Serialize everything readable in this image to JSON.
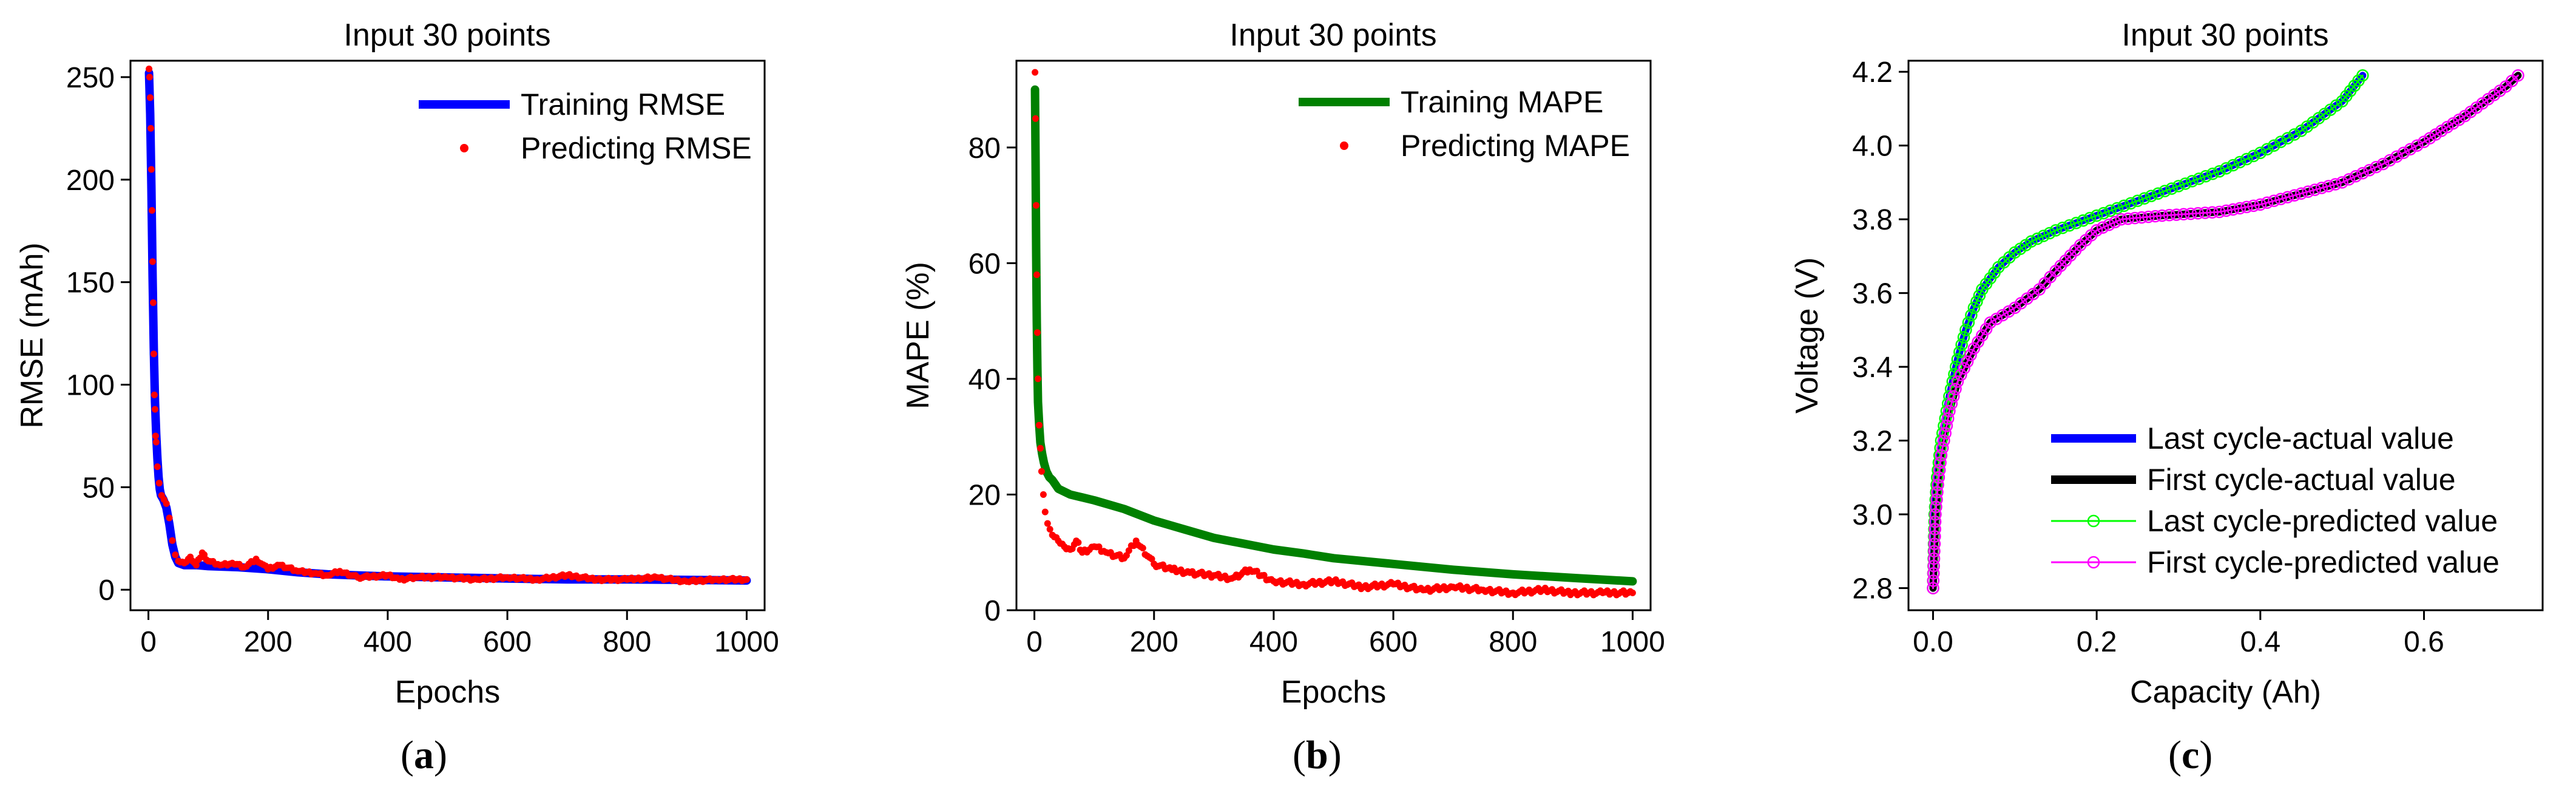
{
  "chart_data": [
    {
      "type": "line",
      "panel_label": "a",
      "title": "Input 30 points",
      "xlabel": "Epochs",
      "ylabel": "RMSE (mAh)",
      "xlim": [
        -30,
        1030
      ],
      "ylim": [
        -10,
        258
      ],
      "xticks": [
        0,
        200,
        400,
        600,
        800,
        1000
      ],
      "yticks": [
        0,
        50,
        100,
        150,
        200,
        250
      ],
      "grid": false,
      "legend_position": "top-right",
      "series": [
        {
          "name": "Training RMSE",
          "style": "line",
          "color": "#0000ff",
          "points": [
            [
              1,
              252
            ],
            [
              3,
              232
            ],
            [
              5,
              196
            ],
            [
              7,
              152
            ],
            [
              9,
              118
            ],
            [
              11,
              92
            ],
            [
              13,
              76
            ],
            [
              15,
              64
            ],
            [
              17,
              55
            ],
            [
              19,
              49
            ],
            [
              21,
              46
            ],
            [
              25,
              44
            ],
            [
              30,
              40
            ],
            [
              35,
              32
            ],
            [
              40,
              22
            ],
            [
              45,
              16
            ],
            [
              50,
              13
            ],
            [
              60,
              12
            ],
            [
              80,
              12
            ],
            [
              100,
              11.5
            ],
            [
              150,
              11
            ],
            [
              200,
              10
            ],
            [
              250,
              8.5
            ],
            [
              300,
              7.5
            ],
            [
              400,
              6.5
            ],
            [
              500,
              6
            ],
            [
              600,
              5.5
            ],
            [
              700,
              5
            ],
            [
              800,
              5
            ],
            [
              900,
              4.8
            ],
            [
              1000,
              4.5
            ]
          ]
        },
        {
          "name": "Predicting RMSE",
          "style": "scatter",
          "color": "#ff0000",
          "points": [
            [
              1,
              254
            ],
            [
              2,
              250
            ],
            [
              3,
              240
            ],
            [
              4,
              225
            ],
            [
              5,
              205
            ],
            [
              6,
              185
            ],
            [
              7,
              160
            ],
            [
              8,
              140
            ],
            [
              9,
              115
            ],
            [
              10,
              95
            ],
            [
              11,
              88
            ],
            [
              12,
              75
            ],
            [
              13,
              72
            ],
            [
              15,
              60
            ],
            [
              18,
              52
            ],
            [
              22,
              46
            ],
            [
              26,
              44
            ],
            [
              30,
              42
            ],
            [
              35,
              35
            ],
            [
              40,
              24
            ],
            [
              45,
              17
            ],
            [
              50,
              14
            ],
            [
              60,
              13
            ],
            [
              70,
              16
            ],
            [
              80,
              12
            ],
            [
              90,
              18
            ],
            [
              100,
              14
            ],
            [
              120,
              12
            ],
            [
              140,
              13
            ],
            [
              160,
              11
            ],
            [
              180,
              15
            ],
            [
              200,
              10
            ],
            [
              220,
              12
            ],
            [
              250,
              9
            ],
            [
              280,
              8
            ],
            [
              300,
              7
            ],
            [
              320,
              9
            ],
            [
              350,
              6
            ],
            [
              400,
              7
            ],
            [
              420,
              5
            ],
            [
              450,
              6
            ],
            [
              500,
              6
            ],
            [
              550,
              5
            ],
            [
              600,
              6
            ],
            [
              650,
              5
            ],
            [
              700,
              7
            ],
            [
              750,
              5
            ],
            [
              800,
              5
            ],
            [
              850,
              6
            ],
            [
              900,
              4
            ],
            [
              950,
              5
            ],
            [
              1000,
              5
            ]
          ]
        }
      ]
    },
    {
      "type": "line",
      "panel_label": "b",
      "title": "Input 30 points",
      "xlabel": "Epochs",
      "ylabel": "MAPE (%)",
      "xlim": [
        -30,
        1030
      ],
      "ylim": [
        0,
        95
      ],
      "xticks": [
        0,
        200,
        400,
        600,
        800,
        1000
      ],
      "yticks": [
        0,
        20,
        40,
        60,
        80
      ],
      "grid": false,
      "legend_position": "top-right",
      "series": [
        {
          "name": "Training MAPE",
          "style": "line",
          "color": "#008000",
          "points": [
            [
              1,
              90
            ],
            [
              2,
              78
            ],
            [
              3,
              62
            ],
            [
              4,
              50
            ],
            [
              5,
              42
            ],
            [
              6,
              36
            ],
            [
              8,
              32
            ],
            [
              10,
              29
            ],
            [
              13,
              27
            ],
            [
              16,
              25.5
            ],
            [
              20,
              24
            ],
            [
              25,
              23
            ],
            [
              30,
              22.5
            ],
            [
              40,
              21
            ],
            [
              60,
              20
            ],
            [
              80,
              19.5
            ],
            [
              100,
              19
            ],
            [
              150,
              17.5
            ],
            [
              200,
              15.5
            ],
            [
              250,
              14
            ],
            [
              300,
              12.5
            ],
            [
              350,
              11.5
            ],
            [
              400,
              10.5
            ],
            [
              450,
              9.8
            ],
            [
              500,
              9
            ],
            [
              600,
              8
            ],
            [
              700,
              7
            ],
            [
              800,
              6.2
            ],
            [
              900,
              5.6
            ],
            [
              1000,
              5
            ]
          ]
        },
        {
          "name": "Predicting MAPE",
          "style": "scatter",
          "color": "#ff0000",
          "points": [
            [
              1,
              93
            ],
            [
              2,
              85
            ],
            [
              3,
              70
            ],
            [
              4,
              58
            ],
            [
              5,
              48
            ],
            [
              6,
              40
            ],
            [
              8,
              32
            ],
            [
              10,
              28
            ],
            [
              12,
              24
            ],
            [
              15,
              20
            ],
            [
              18,
              17
            ],
            [
              22,
              15
            ],
            [
              26,
              14
            ],
            [
              30,
              13
            ],
            [
              40,
              12
            ],
            [
              50,
              11
            ],
            [
              60,
              10.5
            ],
            [
              70,
              12
            ],
            [
              80,
              10
            ],
            [
              100,
              11
            ],
            [
              120,
              10
            ],
            [
              150,
              9
            ],
            [
              170,
              12
            ],
            [
              200,
              8
            ],
            [
              230,
              7
            ],
            [
              260,
              6.5
            ],
            [
              300,
              6
            ],
            [
              330,
              5.5
            ],
            [
              360,
              7
            ],
            [
              400,
              5
            ],
            [
              450,
              4.5
            ],
            [
              500,
              5
            ],
            [
              550,
              4
            ],
            [
              600,
              4.5
            ],
            [
              650,
              3.5
            ],
            [
              700,
              4
            ],
            [
              750,
              3.5
            ],
            [
              800,
              3
            ],
            [
              850,
              3.5
            ],
            [
              900,
              3
            ],
            [
              950,
              3
            ],
            [
              1000,
              3
            ]
          ]
        }
      ]
    },
    {
      "type": "line",
      "panel_label": "c",
      "title": "Input 30 points",
      "xlabel": "Capacity (Ah)",
      "ylabel": "Voltage (V)",
      "xlim": [
        -0.03,
        0.745
      ],
      "ylim": [
        2.74,
        4.23
      ],
      "xticks": [
        0.0,
        0.2,
        0.4,
        0.6
      ],
      "yticks": [
        2.8,
        3.0,
        3.2,
        3.4,
        3.6,
        3.8,
        4.0,
        4.2
      ],
      "grid": false,
      "legend_position": "bottom-right",
      "series": [
        {
          "name": "Last cycle-actual value",
          "style": "line",
          "color": "#0000ff",
          "points": [
            [
              0,
              2.8
            ],
            [
              0.002,
              3.0
            ],
            [
              0.005,
              3.1
            ],
            [
              0.01,
              3.2
            ],
            [
              0.02,
              3.32
            ],
            [
              0.03,
              3.42
            ],
            [
              0.04,
              3.5
            ],
            [
              0.05,
              3.56
            ],
            [
              0.06,
              3.61
            ],
            [
              0.08,
              3.67
            ],
            [
              0.1,
              3.71
            ],
            [
              0.12,
              3.74
            ],
            [
              0.15,
              3.77
            ],
            [
              0.2,
              3.81
            ],
            [
              0.25,
              3.85
            ],
            [
              0.3,
              3.89
            ],
            [
              0.35,
              3.93
            ],
            [
              0.4,
              3.98
            ],
            [
              0.45,
              4.04
            ],
            [
              0.5,
              4.12
            ],
            [
              0.525,
              4.19
            ]
          ]
        },
        {
          "name": "First cycle-actual value",
          "style": "line",
          "color": "#000000",
          "points": [
            [
              0,
              2.8
            ],
            [
              0.003,
              3.0
            ],
            [
              0.006,
              3.08
            ],
            [
              0.01,
              3.16
            ],
            [
              0.02,
              3.28
            ],
            [
              0.03,
              3.36
            ],
            [
              0.05,
              3.45
            ],
            [
              0.07,
              3.52
            ],
            [
              0.1,
              3.56
            ],
            [
              0.13,
              3.61
            ],
            [
              0.15,
              3.66
            ],
            [
              0.18,
              3.73
            ],
            [
              0.2,
              3.77
            ],
            [
              0.23,
              3.8
            ],
            [
              0.28,
              3.81
            ],
            [
              0.35,
              3.82
            ],
            [
              0.4,
              3.84
            ],
            [
              0.45,
              3.87
            ],
            [
              0.5,
              3.9
            ],
            [
              0.55,
              3.95
            ],
            [
              0.6,
              4.01
            ],
            [
              0.65,
              4.08
            ],
            [
              0.7,
              4.16
            ],
            [
              0.715,
              4.19
            ]
          ]
        },
        {
          "name": "Last cycle-predicted value",
          "style": "line-marker",
          "color": "#00ff00",
          "points": [
            [
              0,
              2.8
            ],
            [
              0.002,
              3.0
            ],
            [
              0.005,
              3.1
            ],
            [
              0.01,
              3.2
            ],
            [
              0.02,
              3.32
            ],
            [
              0.03,
              3.42
            ],
            [
              0.04,
              3.5
            ],
            [
              0.05,
              3.56
            ],
            [
              0.06,
              3.61
            ],
            [
              0.08,
              3.67
            ],
            [
              0.1,
              3.71
            ],
            [
              0.12,
              3.74
            ],
            [
              0.15,
              3.77
            ],
            [
              0.2,
              3.81
            ],
            [
              0.25,
              3.85
            ],
            [
              0.3,
              3.89
            ],
            [
              0.35,
              3.93
            ],
            [
              0.4,
              3.98
            ],
            [
              0.45,
              4.04
            ],
            [
              0.5,
              4.12
            ],
            [
              0.525,
              4.19
            ]
          ]
        },
        {
          "name": "First cycle-predicted value",
          "style": "line-marker",
          "color": "#ff00ff",
          "points": [
            [
              0,
              2.8
            ],
            [
              0.003,
              3.0
            ],
            [
              0.006,
              3.08
            ],
            [
              0.01,
              3.16
            ],
            [
              0.02,
              3.28
            ],
            [
              0.03,
              3.36
            ],
            [
              0.05,
              3.45
            ],
            [
              0.07,
              3.52
            ],
            [
              0.1,
              3.56
            ],
            [
              0.13,
              3.61
            ],
            [
              0.15,
              3.66
            ],
            [
              0.18,
              3.73
            ],
            [
              0.2,
              3.77
            ],
            [
              0.23,
              3.8
            ],
            [
              0.28,
              3.81
            ],
            [
              0.35,
              3.82
            ],
            [
              0.4,
              3.84
            ],
            [
              0.45,
              3.87
            ],
            [
              0.5,
              3.9
            ],
            [
              0.55,
              3.95
            ],
            [
              0.6,
              4.01
            ],
            [
              0.65,
              4.08
            ],
            [
              0.7,
              4.16
            ],
            [
              0.715,
              4.19
            ]
          ]
        }
      ]
    }
  ]
}
